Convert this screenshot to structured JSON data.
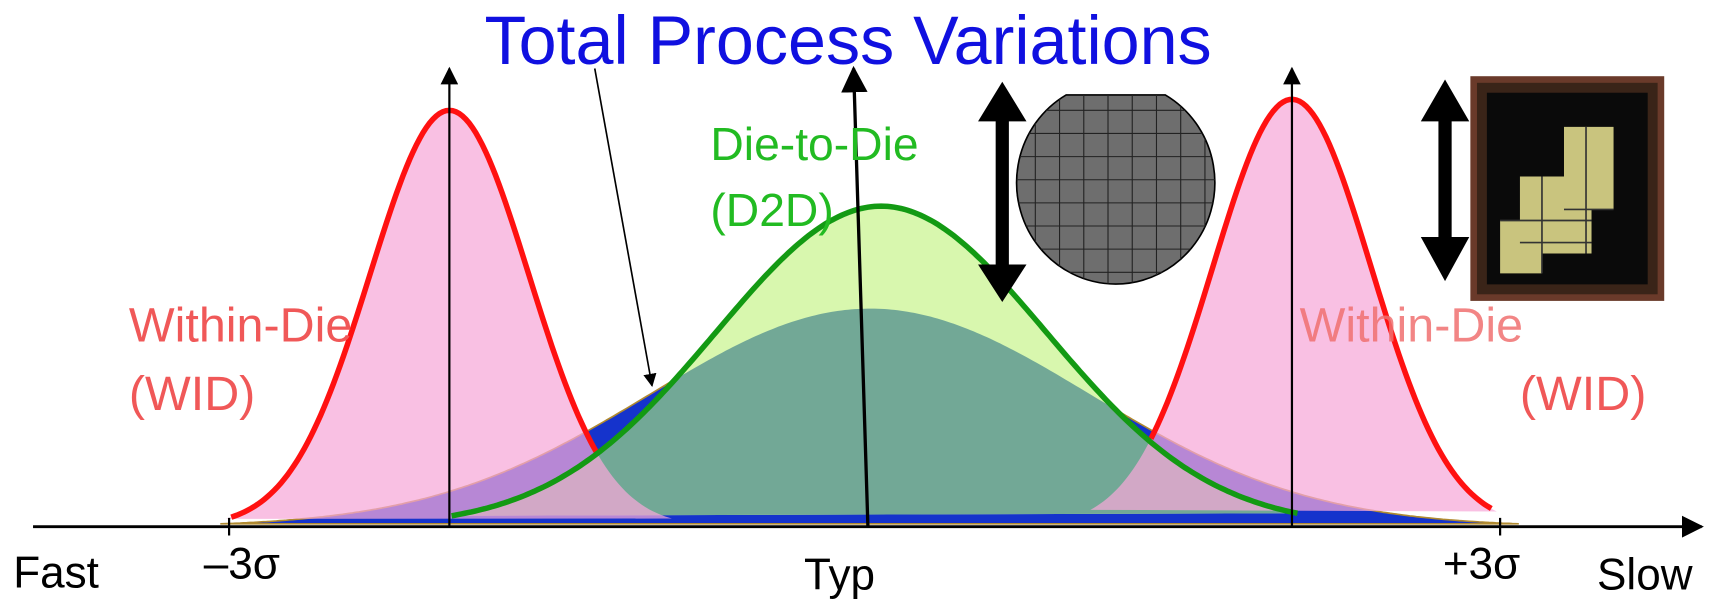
{
  "title": "Total Process Variations",
  "d2d": {
    "name": "Die-to-Die",
    "abbr": "(D2D)"
  },
  "wid_left": {
    "name": "Within-Die",
    "abbr": "(WID)"
  },
  "wid_right": {
    "name": "Within-Die",
    "abbr": "(WID)"
  },
  "axis": {
    "left": "Fast",
    "minus": "–3σ",
    "center": "Typ",
    "plus": "+3σ",
    "right": "Slow"
  }
}
